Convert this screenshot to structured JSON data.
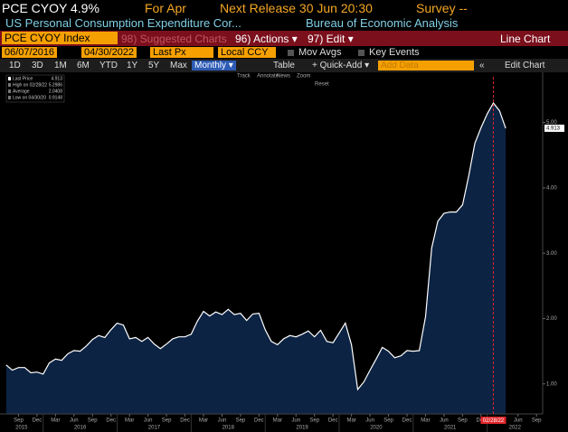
{
  "header": {
    "ticker": "PCE CYOY 4.9%",
    "period": "For Apr",
    "release": "Next Release 30 Jun 20:30",
    "survey": "Survey --",
    "description": "US Personal Consumption Expenditure Cor...",
    "source": "Bureau of Economic Analysis"
  },
  "menu": {
    "security": "PCE CYOY Index",
    "suggested": "98) Suggested Charts",
    "actions": "96) Actions ▾",
    "edit": "97) Edit ▾",
    "view": "Line Chart"
  },
  "settings": {
    "start": "06/07/2016",
    "end": "04/30/2022",
    "field": "Last Px",
    "currency": "Local CCY",
    "mov_avgs": "Mov Avgs",
    "key_events": "Key Events"
  },
  "toolbar": {
    "ranges": [
      "1D",
      "3D",
      "1M",
      "6M",
      "YTD",
      "1Y",
      "5Y",
      "Max"
    ],
    "frequency": "Monthly ▾",
    "table": "Table",
    "quick_add": "+ Quick-Add ▾",
    "add_data": "Add Data",
    "edit_chart": "Edit Chart"
  },
  "chart_tools": [
    "Track",
    "Annotate",
    "News",
    "Zoom",
    "Reset"
  ],
  "chart_data": {
    "type": "area",
    "x": [
      "2015-07",
      "2015-08",
      "2015-09",
      "2015-10",
      "2015-11",
      "2015-12",
      "2016-01",
      "2016-02",
      "2016-03",
      "2016-04",
      "2016-05",
      "2016-06",
      "2016-07",
      "2016-08",
      "2016-09",
      "2016-10",
      "2016-11",
      "2016-12",
      "2017-01",
      "2017-02",
      "2017-03",
      "2017-04",
      "2017-05",
      "2017-06",
      "2017-07",
      "2017-08",
      "2017-09",
      "2017-10",
      "2017-11",
      "2017-12",
      "2018-01",
      "2018-02",
      "2018-03",
      "2018-04",
      "2018-05",
      "2018-06",
      "2018-07",
      "2018-08",
      "2018-09",
      "2018-10",
      "2018-11",
      "2018-12",
      "2019-01",
      "2019-02",
      "2019-03",
      "2019-04",
      "2019-05",
      "2019-06",
      "2019-07",
      "2019-08",
      "2019-09",
      "2019-10",
      "2019-11",
      "2019-12",
      "2020-01",
      "2020-02",
      "2020-03",
      "2020-04",
      "2020-05",
      "2020-06",
      "2020-07",
      "2020-08",
      "2020-09",
      "2020-10",
      "2020-11",
      "2020-12",
      "2021-01",
      "2021-02",
      "2021-03",
      "2021-04",
      "2021-05",
      "2021-06",
      "2021-07",
      "2021-08",
      "2021-09",
      "2021-10",
      "2021-11",
      "2021-12",
      "2022-01",
      "2022-02",
      "2022-03",
      "2022-04"
    ],
    "series": [
      {
        "name": "Last Price",
        "color": "#ffffff",
        "fill": "#0c2343",
        "values": [
          1.29,
          1.21,
          1.25,
          1.25,
          1.17,
          1.18,
          1.15,
          1.32,
          1.38,
          1.36,
          1.46,
          1.51,
          1.5,
          1.58,
          1.68,
          1.74,
          1.71,
          1.83,
          1.93,
          1.9,
          1.69,
          1.71,
          1.65,
          1.71,
          1.61,
          1.54,
          1.61,
          1.69,
          1.72,
          1.72,
          1.76,
          1.96,
          2.11,
          2.04,
          2.1,
          2.06,
          2.14,
          2.06,
          2.08,
          1.97,
          2.07,
          2.08,
          1.83,
          1.65,
          1.6,
          1.69,
          1.74,
          1.72,
          1.76,
          1.81,
          1.72,
          1.82,
          1.65,
          1.63,
          1.78,
          1.93,
          1.6,
          0.9148,
          1.03,
          1.21,
          1.38,
          1.56,
          1.5,
          1.4,
          1.43,
          1.51,
          1.5,
          1.51,
          2.03,
          3.08,
          3.49,
          3.61,
          3.63,
          3.63,
          3.74,
          4.18,
          4.68,
          4.92,
          5.13,
          5.2986,
          5.18,
          4.913
        ]
      }
    ],
    "stats": [
      {
        "label": "High on 02/28/22",
        "value": 5.2986
      },
      {
        "label": "Average",
        "value": 2.0408
      },
      {
        "label": "Low on 04/30/20",
        "value": 0.9148
      }
    ],
    "xlim": [
      "2015-06",
      "2022-10"
    ],
    "xticks": [
      {
        "value": "2015-09",
        "label": "Sep"
      },
      {
        "value": "2015-12",
        "label": "Dec"
      },
      {
        "value": "2016-03",
        "label": "Mar"
      },
      {
        "value": "2016-06",
        "label": "Jun"
      },
      {
        "value": "2016-09",
        "label": "Sep"
      },
      {
        "value": "2016-12",
        "label": "Dec"
      },
      {
        "value": "2017-03",
        "label": "Mar"
      },
      {
        "value": "2017-06",
        "label": "Jun"
      },
      {
        "value": "2017-09",
        "label": "Sep"
      },
      {
        "value": "2017-12",
        "label": "Dec"
      },
      {
        "value": "2018-03",
        "label": "Mar"
      },
      {
        "value": "2018-06",
        "label": "Jun"
      },
      {
        "value": "2018-09",
        "label": "Sep"
      },
      {
        "value": "2018-12",
        "label": "Dec"
      },
      {
        "value": "2019-03",
        "label": "Mar"
      },
      {
        "value": "2019-06",
        "label": "Jun"
      },
      {
        "value": "2019-09",
        "label": "Sep"
      },
      {
        "value": "2019-12",
        "label": "Dec"
      },
      {
        "value": "2020-03",
        "label": "Mar"
      },
      {
        "value": "2020-06",
        "label": "Jun"
      },
      {
        "value": "2020-09",
        "label": "Sep"
      },
      {
        "value": "2020-12",
        "label": "Dec"
      },
      {
        "value": "2021-03",
        "label": "Mar"
      },
      {
        "value": "2021-06",
        "label": "Jun"
      },
      {
        "value": "2021-09",
        "label": "Sep"
      },
      {
        "value": "2021-12",
        "label": "Dec"
      },
      {
        "value": "2022-06",
        "label": "Jun"
      },
      {
        "value": "2022-09",
        "label": "Sep"
      }
    ],
    "year_ticks": [
      2015,
      2016,
      2017,
      2018,
      2019,
      2020,
      2021,
      2022
    ],
    "ylim": [
      0.54,
      5.7
    ],
    "yticks": [
      {
        "value": 1,
        "label": "1.00"
      },
      {
        "value": 2,
        "label": "2.00"
      },
      {
        "value": 3,
        "label": "3.00"
      },
      {
        "value": 4,
        "label": "4.00"
      },
      {
        "value": 5,
        "label": "5.00"
      }
    ],
    "grid": false,
    "annotations": [
      {
        "x": "2022-02",
        "label": "02/28/22",
        "color": "#e0262b"
      }
    ]
  }
}
